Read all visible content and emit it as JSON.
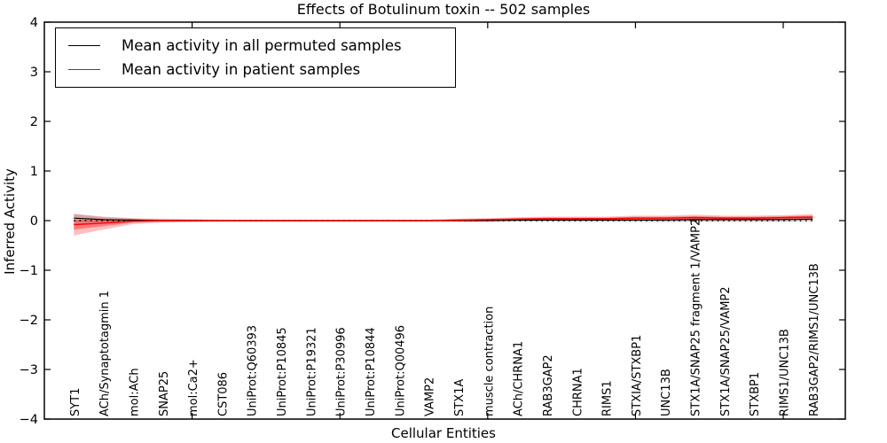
{
  "figure": {
    "title": "Effects of Botulinum toxin -- 502 samples",
    "xlabel": "Cellular Entities",
    "ylabel": "Inferred Activity"
  },
  "legend": {
    "position": "upper left",
    "items": [
      {
        "label": "Mean activity in all permuted samples",
        "color": "#000000"
      },
      {
        "label": "Mean activity in patient samples",
        "color": "#ff0000"
      }
    ]
  },
  "chart_data": {
    "type": "line",
    "title": "Effects of Botulinum toxin -- 502 samples",
    "xlabel": "Cellular Entities",
    "ylabel": "Inferred Activity",
    "xlim": [
      0,
      27.1
    ],
    "ylim": [
      -4,
      4
    ],
    "yticks": [
      4,
      3,
      2,
      1,
      0,
      -1,
      -2,
      -3,
      -4
    ],
    "ytick_labels": [
      "4",
      "3",
      "2",
      "1",
      "0",
      "−1",
      "−2",
      "−3",
      "−4"
    ],
    "xtick_positions": [
      5,
      10,
      15,
      20,
      25
    ],
    "grid": false,
    "legend_position": "upper left",
    "x": [
      1,
      2,
      3,
      4,
      5,
      6,
      7,
      8,
      9,
      10,
      11,
      12,
      13,
      14,
      15,
      16,
      17,
      18,
      19,
      20,
      21,
      22,
      23,
      24,
      25,
      26
    ],
    "categories": [
      "SYT1",
      "ACh/Synaptotagmin 1",
      "mol:ACh",
      "SNAP25",
      "mol:Ca2+",
      "CST086",
      "UniProt:Q60393",
      "UniProt:P10845",
      "UniProt:P19321",
      "UniProt:P30996",
      "UniProt:P10844",
      "UniProt:Q00496",
      "VAMP2",
      "STX1A",
      "muscle contraction",
      "ACh/CHRNA1",
      "RAB3GAP2",
      "CHRNA1",
      "RIMS1",
      "STXIA/STXBP1",
      "UNC13B",
      "STX1A/SNAP25 fragment 1/VAMP2",
      "STX1A/SNAP25/VAMP2",
      "STXBP1",
      "RIMS1/UNC13B",
      "RAB3GAP2/RIMS1/UNC13B"
    ],
    "series": [
      {
        "name": "Mean activity in all permuted samples",
        "color": "#000000",
        "style": "solid",
        "width": 1.2,
        "values": [
          0.05,
          0.02,
          0.01,
          0.0,
          0.0,
          0.0,
          0.0,
          0.0,
          0.0,
          0.0,
          0.0,
          0.0,
          0.0,
          0.0,
          0.0,
          0.01,
          0.01,
          0.01,
          0.01,
          0.01,
          0.01,
          0.02,
          0.02,
          0.02,
          0.02,
          0.03
        ]
      },
      {
        "name": "Mean activity in patient samples",
        "color": "#ff0000",
        "style": "solid",
        "width": 1.4,
        "values": [
          -0.08,
          -0.05,
          -0.01,
          0.0,
          0.0,
          0.0,
          0.0,
          0.0,
          0.0,
          0.0,
          0.0,
          0.0,
          0.0,
          0.01,
          0.02,
          0.03,
          0.04,
          0.04,
          0.04,
          0.05,
          0.05,
          0.06,
          0.05,
          0.05,
          0.06,
          0.07
        ]
      }
    ],
    "zero_reference_line": {
      "y": 0,
      "color": "#000000",
      "style": "dotted"
    },
    "bands": [
      {
        "name": "patient-std-outer",
        "center_series": 1,
        "color": "#ff0000",
        "alpha": 0.25,
        "halfwidths": [
          0.22,
          0.13,
          0.06,
          0.04,
          0.03,
          0.02,
          0.02,
          0.02,
          0.02,
          0.02,
          0.02,
          0.02,
          0.02,
          0.03,
          0.03,
          0.04,
          0.04,
          0.04,
          0.04,
          0.05,
          0.05,
          0.06,
          0.05,
          0.05,
          0.05,
          0.06
        ]
      },
      {
        "name": "patient-std-inner",
        "center_series": 1,
        "color": "#ff0000",
        "alpha": 0.35,
        "halfwidths": [
          0.1,
          0.06,
          0.03,
          0.02,
          0.015,
          0.01,
          0.01,
          0.01,
          0.01,
          0.01,
          0.01,
          0.01,
          0.01,
          0.015,
          0.015,
          0.02,
          0.02,
          0.02,
          0.02,
          0.025,
          0.025,
          0.03,
          0.025,
          0.025,
          0.025,
          0.03
        ]
      },
      {
        "name": "permuted-std",
        "center_series": 0,
        "color": "#000000",
        "alpha": 0.14,
        "halfwidths": [
          0.08,
          0.05,
          0.03,
          0.02,
          0.02,
          0.015,
          0.015,
          0.015,
          0.015,
          0.015,
          0.015,
          0.015,
          0.015,
          0.02,
          0.025,
          0.03,
          0.035,
          0.04,
          0.04,
          0.04,
          0.045,
          0.05,
          0.05,
          0.05,
          0.05,
          0.05
        ]
      }
    ]
  }
}
